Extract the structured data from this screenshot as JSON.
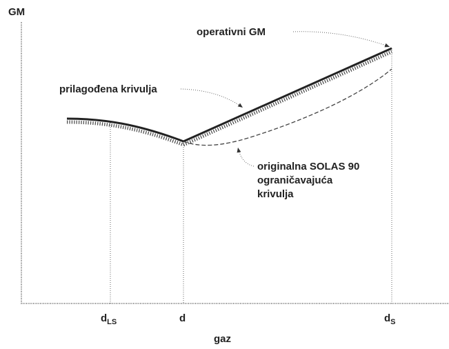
{
  "axes": {
    "y_label": "GM",
    "x_label": "gaz"
  },
  "x_marks": [
    {
      "main": "d",
      "sub": "LS"
    },
    {
      "main": "d"
    },
    {
      "main": "d",
      "sub": "S"
    }
  ],
  "annotations": {
    "operative": "operativni GM",
    "adjusted": "prilagođena krivulja",
    "original": [
      "originalna SOLAS 90",
      "ograničavajuća",
      "krivulja"
    ]
  }
}
